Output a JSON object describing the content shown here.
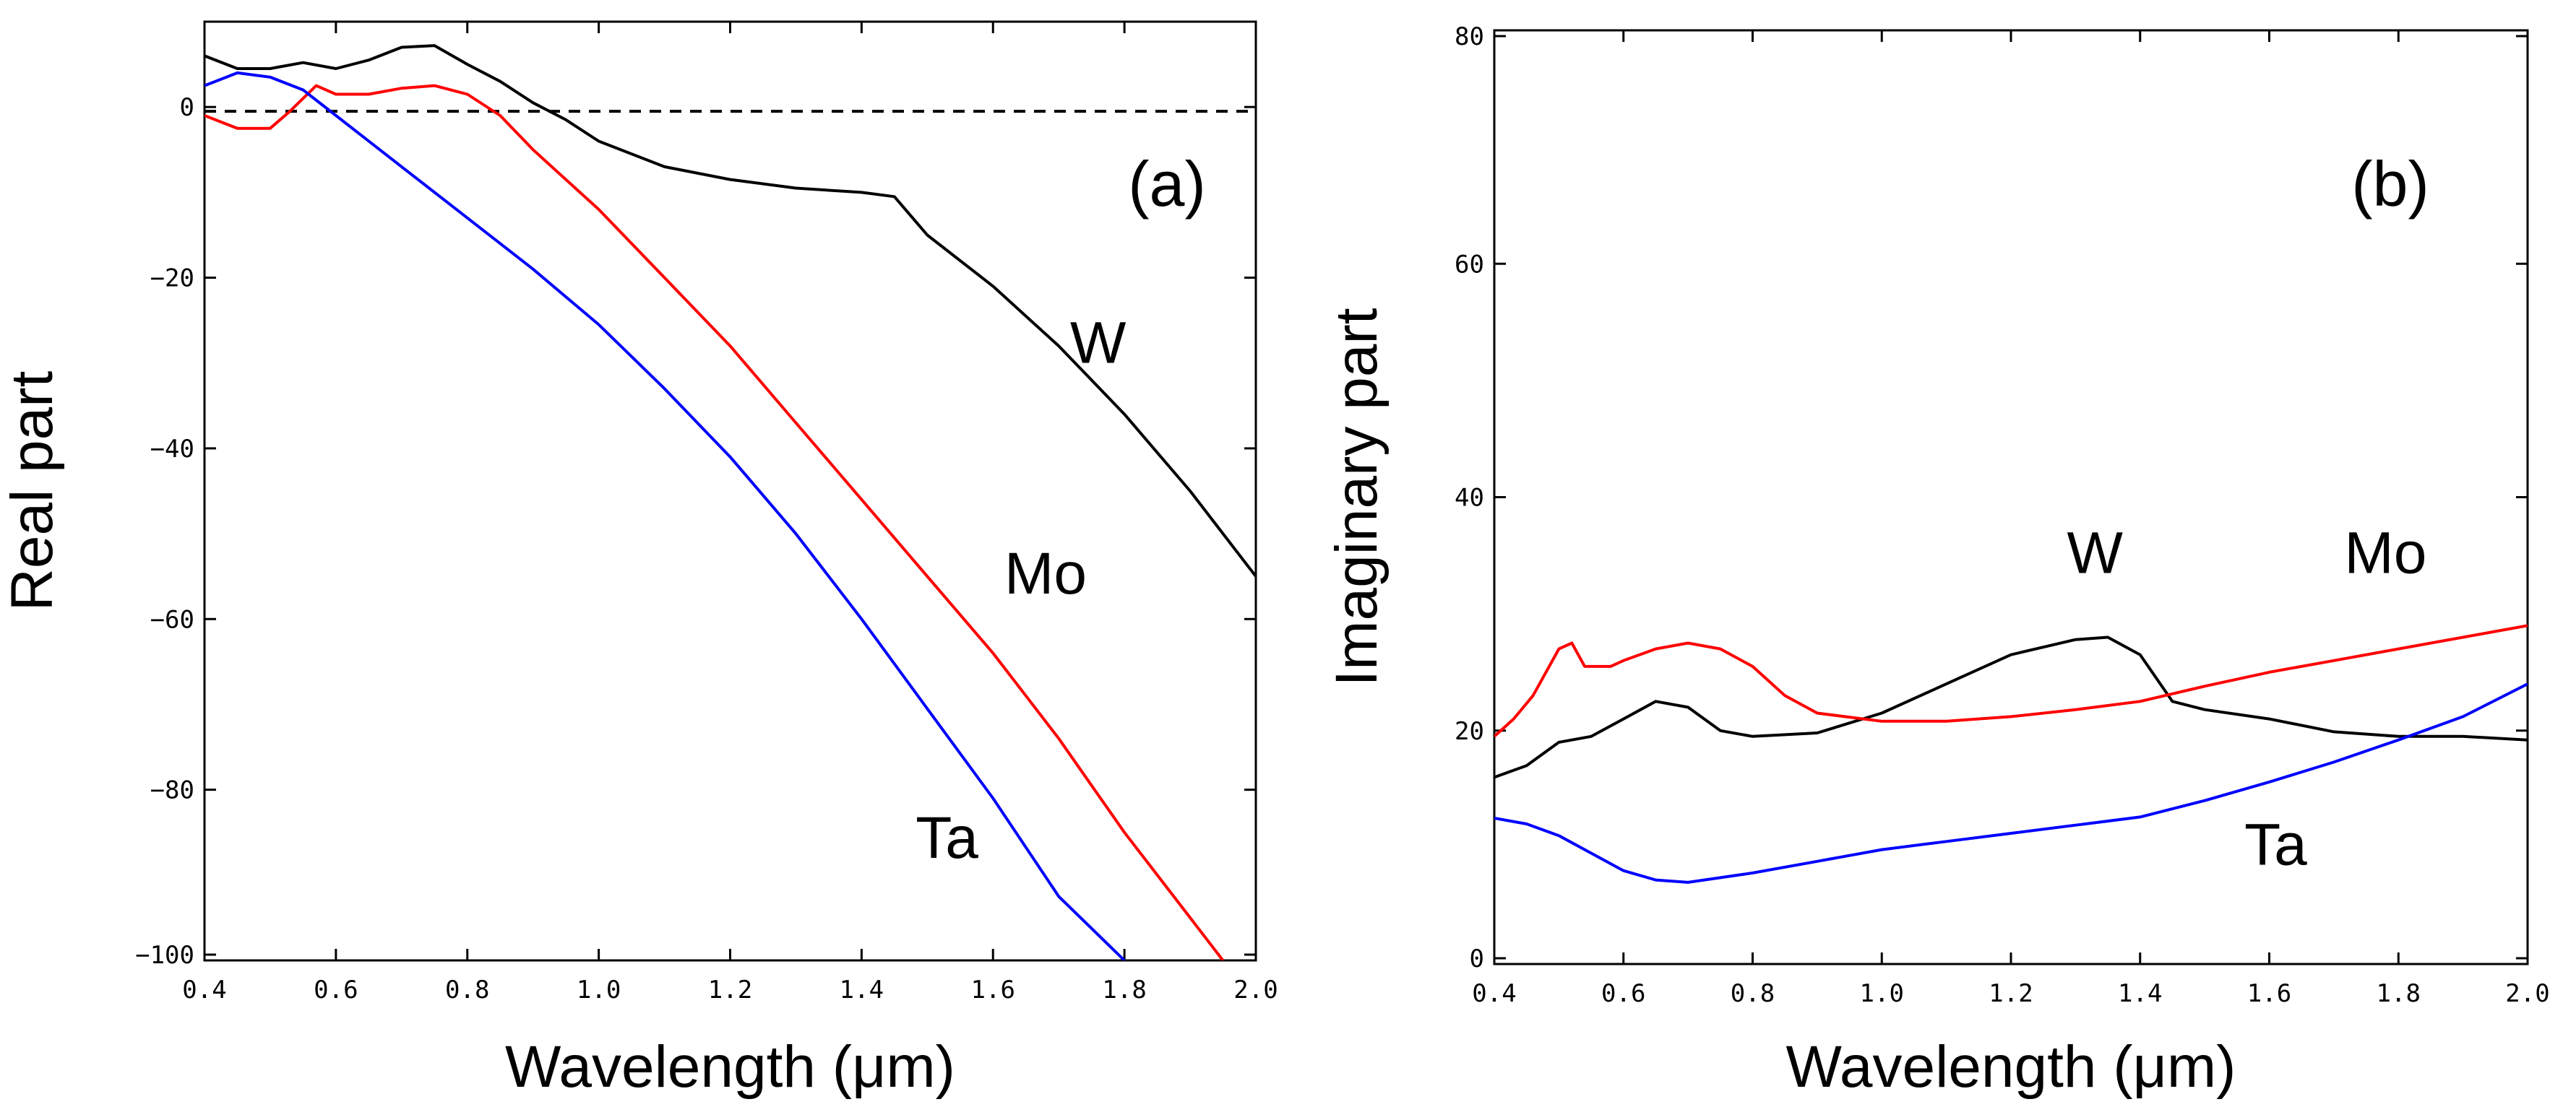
{
  "chart_data": [
    {
      "panel": "(a)",
      "type": "line",
      "xlabel": "Wavelength (μm)",
      "ylabel": "Real part",
      "xlim": [
        0.4,
        2.0
      ],
      "ylim": [
        -100,
        10
      ],
      "xticks": [
        "0.4",
        "0.6",
        "0.8",
        "1.0",
        "1.2",
        "1.4",
        "1.6",
        "1.8",
        "2.0"
      ],
      "yticks": [
        "0",
        "−20",
        "−40",
        "−60",
        "−80",
        "−100"
      ],
      "reference_line": {
        "y": -0.5,
        "style": "dashed"
      },
      "series": [
        {
          "name": "W",
          "color": "#000000",
          "label_at": [
            1.76,
            -30
          ],
          "x": [
            0.4,
            0.45,
            0.5,
            0.55,
            0.6,
            0.65,
            0.7,
            0.75,
            0.8,
            0.85,
            0.9,
            0.95,
            1.0,
            1.1,
            1.2,
            1.3,
            1.4,
            1.45,
            1.5,
            1.6,
            1.7,
            1.8,
            1.9,
            2.0
          ],
          "y": [
            6,
            4.5,
            4.5,
            5.2,
            4.5,
            5.5,
            7,
            7.2,
            5,
            3,
            0.5,
            -1.5,
            -4,
            -7,
            -8.5,
            -9.5,
            -10,
            -10.5,
            -15,
            -21,
            -28,
            -36,
            -45,
            -55
          ]
        },
        {
          "name": "Mo",
          "color": "#ff0000",
          "label_at": [
            1.68,
            -57
          ],
          "x": [
            0.4,
            0.45,
            0.5,
            0.53,
            0.57,
            0.6,
            0.65,
            0.7,
            0.75,
            0.8,
            0.85,
            0.9,
            1.0,
            1.1,
            1.2,
            1.3,
            1.4,
            1.5,
            1.6,
            1.7,
            1.8,
            1.9,
            1.95
          ],
          "y": [
            -1,
            -2.5,
            -2.5,
            -0.5,
            2.5,
            1.5,
            1.5,
            2.2,
            2.5,
            1.5,
            -1,
            -5,
            -12,
            -20,
            -28,
            -37,
            -46,
            -55,
            -64,
            -74,
            -85,
            -95,
            -100
          ]
        },
        {
          "name": "Ta",
          "color": "#0000ff",
          "label_at": [
            1.53,
            -88
          ],
          "x": [
            0.4,
            0.45,
            0.5,
            0.55,
            0.6,
            0.7,
            0.8,
            0.9,
            1.0,
            1.1,
            1.2,
            1.3,
            1.4,
            1.5,
            1.6,
            1.7,
            1.8
          ],
          "y": [
            2.5,
            4,
            3.5,
            2,
            -1,
            -7,
            -13,
            -19,
            -25.5,
            -33,
            -41,
            -50,
            -60,
            -70.5,
            -81,
            -92.5,
            -100
          ]
        }
      ]
    },
    {
      "panel": "(b)",
      "type": "line",
      "xlabel": "Wavelength (μm)",
      "ylabel": "Imaginary part",
      "xlim": [
        0.4,
        2.0
      ],
      "ylim": [
        0,
        80
      ],
      "xticks": [
        "0.4",
        "0.6",
        "0.8",
        "1.0",
        "1.2",
        "1.4",
        "1.6",
        "1.8",
        "2.0"
      ],
      "yticks": [
        "0",
        "20",
        "40",
        "60",
        "80"
      ],
      "series": [
        {
          "name": "W",
          "color": "#000000",
          "label_at": [
            1.33,
            33.5
          ],
          "x": [
            0.4,
            0.45,
            0.5,
            0.55,
            0.6,
            0.65,
            0.7,
            0.75,
            0.8,
            0.9,
            1.0,
            1.1,
            1.2,
            1.3,
            1.35,
            1.4,
            1.45,
            1.5,
            1.6,
            1.7,
            1.8,
            1.9,
            2.0
          ],
          "y": [
            16,
            17,
            19,
            19.5,
            21,
            22.5,
            22,
            20,
            19.5,
            19.8,
            21.5,
            24,
            26.5,
            27.8,
            28,
            26.5,
            22.5,
            21.8,
            21,
            19.9,
            19.5,
            19.5,
            19.2
          ]
        },
        {
          "name": "Mo",
          "color": "#ff0000",
          "label_at": [
            1.78,
            33.5
          ],
          "x": [
            0.4,
            0.43,
            0.46,
            0.5,
            0.52,
            0.54,
            0.56,
            0.58,
            0.6,
            0.65,
            0.7,
            0.75,
            0.8,
            0.85,
            0.9,
            1.0,
            1.1,
            1.2,
            1.3,
            1.4,
            1.5,
            1.6,
            1.7,
            1.8,
            1.9,
            2.0
          ],
          "y": [
            19.5,
            21,
            23,
            27,
            27.5,
            25.5,
            25.5,
            25.5,
            26,
            27,
            27.5,
            27,
            25.5,
            23,
            21.5,
            20.8,
            20.8,
            21.2,
            21.8,
            22.5,
            23.8,
            25,
            26,
            27,
            28,
            29
          ]
        },
        {
          "name": "Ta",
          "color": "#0000ff",
          "label_at": [
            1.61,
            8.5
          ],
          "x": [
            0.4,
            0.45,
            0.5,
            0.55,
            0.6,
            0.65,
            0.7,
            0.8,
            0.9,
            1.0,
            1.1,
            1.2,
            1.3,
            1.4,
            1.5,
            1.6,
            1.7,
            1.8,
            1.9,
            2.0
          ],
          "y": [
            12.5,
            12,
            11,
            9.5,
            8,
            7.2,
            7,
            7.8,
            8.8,
            9.8,
            10.5,
            11.2,
            11.9,
            12.6,
            14,
            15.6,
            17.3,
            19.2,
            21.2,
            24
          ]
        }
      ]
    }
  ]
}
